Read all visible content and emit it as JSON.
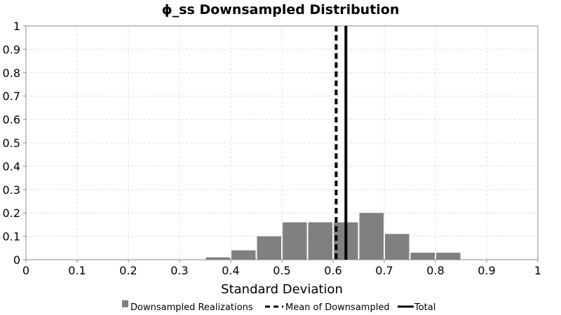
{
  "chart_data": {
    "type": "bar",
    "title": "ϕ_ss Downsampled Distribution",
    "xlabel": "Standard Deviation",
    "ylabel": "",
    "xlim": [
      0,
      1
    ],
    "ylim": [
      0,
      1
    ],
    "x_ticks": [
      "0",
      "0.1",
      "0.2",
      "0.3",
      "0.4",
      "0.5",
      "0.6",
      "0.7",
      "0.8",
      "0.9",
      "1"
    ],
    "y_ticks": [
      "0",
      "0.1",
      "0.2",
      "0.3",
      "0.4",
      "0.5",
      "0.6",
      "0.7",
      "0.8",
      "0.9",
      "1"
    ],
    "grid": true,
    "bin_width": 0.05,
    "bins": [
      {
        "x0": 0.35,
        "x1": 0.4,
        "value": 0.01
      },
      {
        "x0": 0.4,
        "x1": 0.45,
        "value": 0.04
      },
      {
        "x0": 0.45,
        "x1": 0.5,
        "value": 0.1
      },
      {
        "x0": 0.5,
        "x1": 0.55,
        "value": 0.16
      },
      {
        "x0": 0.55,
        "x1": 0.6,
        "value": 0.16
      },
      {
        "x0": 0.6,
        "x1": 0.65,
        "value": 0.16
      },
      {
        "x0": 0.65,
        "x1": 0.7,
        "value": 0.2
      },
      {
        "x0": 0.7,
        "x1": 0.75,
        "value": 0.11
      },
      {
        "x0": 0.75,
        "x1": 0.8,
        "value": 0.03
      },
      {
        "x0": 0.8,
        "x1": 0.85,
        "value": 0.03
      }
    ],
    "lines": [
      {
        "name": "Mean of Downsampled",
        "x": 0.606,
        "style": "dashed",
        "color": "#000000"
      },
      {
        "name": "Total",
        "x": 0.625,
        "style": "solid",
        "color": "#000000"
      }
    ],
    "series": [
      {
        "name": "Downsampled Realizations",
        "color": "#808080"
      }
    ],
    "legend": {
      "placement": "bottom",
      "entries": [
        "Downsampled Realizations",
        "Mean of Downsampled",
        "Total"
      ]
    }
  }
}
